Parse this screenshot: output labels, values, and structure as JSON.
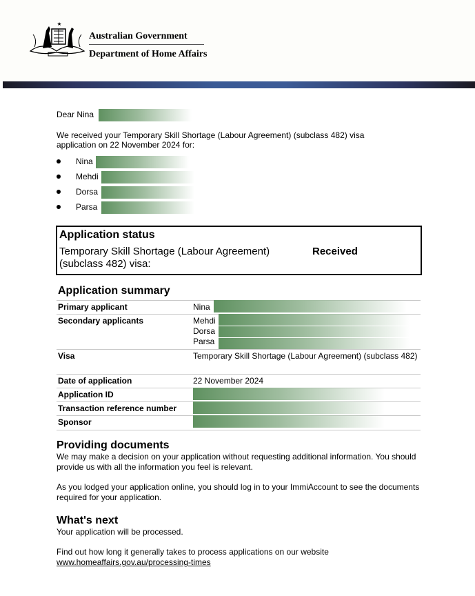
{
  "header": {
    "org_line1": "Australian Government",
    "org_line2": "Department of Home Affairs",
    "logo": "commonwealth-coat-of-arms"
  },
  "greeting": "Dear Nina",
  "intro": "We received your Temporary Skill Shortage (Labour Agreement) (subclass 482) visa application on 22 November 2024 for:",
  "applicants": [
    "Nina",
    "Mehdi",
    "Dorsa",
    "Parsa"
  ],
  "status": {
    "title": "Application status",
    "visa": "Temporary Skill Shortage (Labour Agreement) (subclass 482) visa:",
    "value": "Received"
  },
  "summary": {
    "title": "Application summary",
    "primary_label": "Primary applicant",
    "primary_value": "Nina",
    "secondary_label": "Secondary applicants",
    "secondary_values": [
      "Mehdi",
      "Dorsa",
      "Parsa"
    ],
    "visa_label": "Visa",
    "visa_value": "Temporary Skill Shortage (Labour Agreement) (subclass 482)",
    "date_label": "Date of application",
    "date_value": "22 November 2024",
    "appid_label": "Application ID",
    "trn_label": "Transaction reference number",
    "sponsor_label": "Sponsor"
  },
  "documents": {
    "title": "Providing documents",
    "p1": "We may make a decision on your application without requesting additional information. You should provide us with all the information you feel is relevant.",
    "p2": "As you lodged your application online, you should log in to your ImmiAccount to see the documents required for your application."
  },
  "next": {
    "title": "What's next",
    "p1": "Your application will be processed.",
    "p2": "Find out how long it generally takes to process applications on our website",
    "link": "www.homeaffairs.gov.au/processing-times"
  },
  "colors": {
    "redaction": "#5f9160",
    "band": "#3a5a95"
  }
}
